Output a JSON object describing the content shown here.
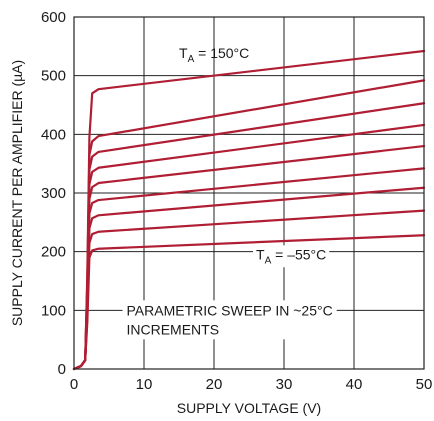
{
  "chart_data": {
    "type": "line",
    "title": "",
    "xlabel": "SUPPLY VOLTAGE (V)",
    "ylabel": "SUPPLY CURRENT PER AMPLIFIER (µA)",
    "xlim": [
      0,
      50
    ],
    "ylim": [
      0,
      600
    ],
    "x_ticks": [
      0,
      10,
      20,
      30,
      40,
      50
    ],
    "y_ticks": [
      0,
      100,
      200,
      300,
      400,
      500,
      600
    ],
    "grid": true,
    "series_color": "#b01e34",
    "series": [
      {
        "values": [
          [
            0,
            0
          ],
          [
            1,
            5
          ],
          [
            1.6,
            15
          ],
          [
            1.9,
            80
          ],
          [
            2.2,
            190
          ],
          [
            2.6,
            202
          ],
          [
            3.5,
            205
          ],
          [
            50,
            228
          ]
        ]
      },
      {
        "values": [
          [
            0,
            0
          ],
          [
            1,
            5
          ],
          [
            1.6,
            15
          ],
          [
            1.9,
            90
          ],
          [
            2.2,
            215
          ],
          [
            2.6,
            230
          ],
          [
            3.5,
            234
          ],
          [
            50,
            270
          ]
        ]
      },
      {
        "values": [
          [
            0,
            0
          ],
          [
            1,
            5
          ],
          [
            1.6,
            15
          ],
          [
            1.9,
            100
          ],
          [
            2.2,
            240
          ],
          [
            2.6,
            257
          ],
          [
            3.5,
            262
          ],
          [
            50,
            309
          ]
        ]
      },
      {
        "values": [
          [
            0,
            0
          ],
          [
            1,
            5
          ],
          [
            1.6,
            15
          ],
          [
            1.9,
            110
          ],
          [
            2.2,
            265
          ],
          [
            2.6,
            283
          ],
          [
            3.5,
            288
          ],
          [
            50,
            342
          ]
        ]
      },
      {
        "values": [
          [
            0,
            0
          ],
          [
            1,
            5
          ],
          [
            1.6,
            15
          ],
          [
            1.9,
            120
          ],
          [
            2.2,
            290
          ],
          [
            2.6,
            310
          ],
          [
            3.5,
            317
          ],
          [
            50,
            380
          ]
        ]
      },
      {
        "values": [
          [
            0,
            0
          ],
          [
            1,
            5
          ],
          [
            1.6,
            15
          ],
          [
            1.9,
            130
          ],
          [
            2.2,
            315
          ],
          [
            2.6,
            336
          ],
          [
            3.5,
            343
          ],
          [
            50,
            416
          ]
        ]
      },
      {
        "values": [
          [
            0,
            0
          ],
          [
            1,
            5
          ],
          [
            1.6,
            15
          ],
          [
            1.9,
            140
          ],
          [
            2.2,
            340
          ],
          [
            2.6,
            362
          ],
          [
            3.5,
            370
          ],
          [
            50,
            453
          ]
        ]
      },
      {
        "values": [
          [
            0,
            0
          ],
          [
            1,
            5
          ],
          [
            1.6,
            15
          ],
          [
            1.9,
            150
          ],
          [
            2.2,
            365
          ],
          [
            2.6,
            388
          ],
          [
            3.5,
            397
          ],
          [
            50,
            492
          ]
        ]
      },
      {
        "values": [
          [
            0,
            0
          ],
          [
            1,
            5
          ],
          [
            1.6,
            15
          ],
          [
            1.9,
            160
          ],
          [
            2.2,
            395
          ],
          [
            2.6,
            470
          ],
          [
            3.5,
            477
          ],
          [
            50,
            542
          ]
        ]
      }
    ],
    "annotations": {
      "top": {
        "prefix": "T",
        "sub": "A",
        "suffix": " = 150°C",
        "x": 15,
        "y": 530
      },
      "bottom": {
        "prefix": "T",
        "sub": "A",
        "suffix": " = –55°C",
        "x": 26,
        "y": 187
      },
      "sweep_line1": "PARAMETRIC SWEEP IN ~25°C",
      "sweep_line2": "INCREMENTS",
      "sweep_pos": {
        "x": 7.5,
        "y": 100
      }
    }
  }
}
